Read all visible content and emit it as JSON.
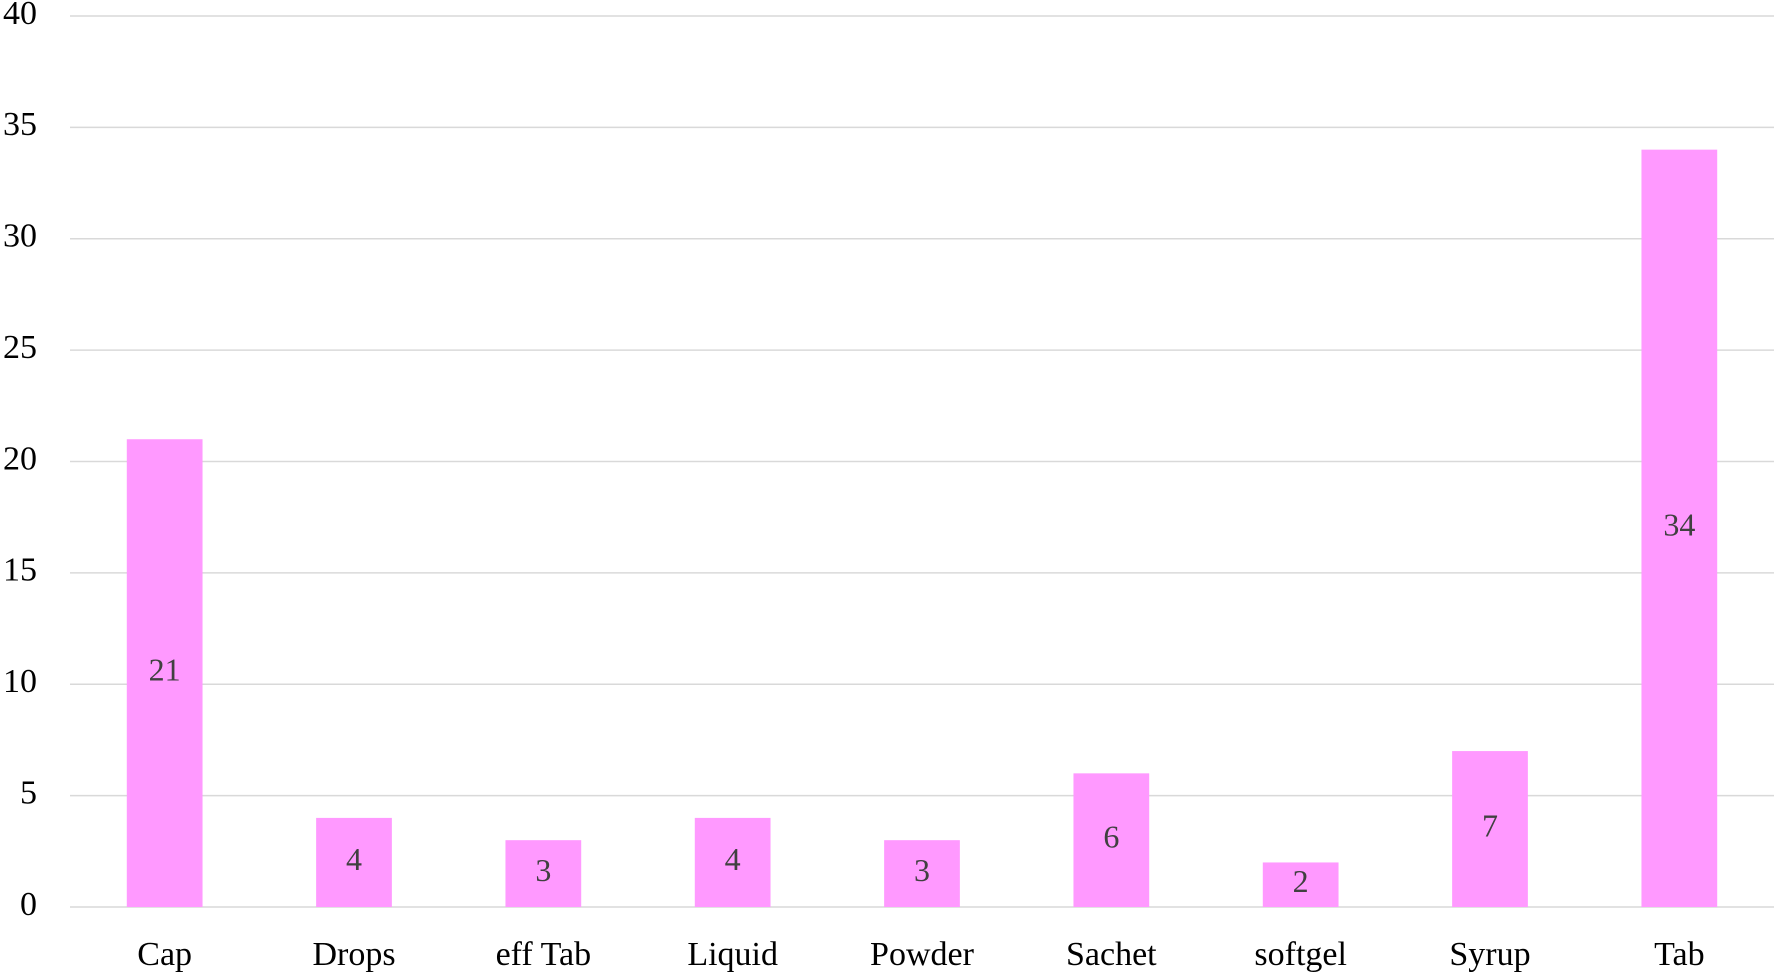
{
  "chart_data": {
    "type": "bar",
    "categories": [
      "Cap",
      "Drops",
      "eff Tab",
      "Liquid",
      "Powder",
      "Sachet",
      "softgel",
      "Syrup",
      "Tab"
    ],
    "values": [
      21,
      4,
      3,
      4,
      3,
      6,
      2,
      7,
      34
    ],
    "color": "#ff99ff",
    "ylim": [
      0,
      40
    ],
    "yticks": [
      0,
      5,
      10,
      15,
      20,
      25,
      30,
      35,
      40
    ],
    "grid": true
  }
}
